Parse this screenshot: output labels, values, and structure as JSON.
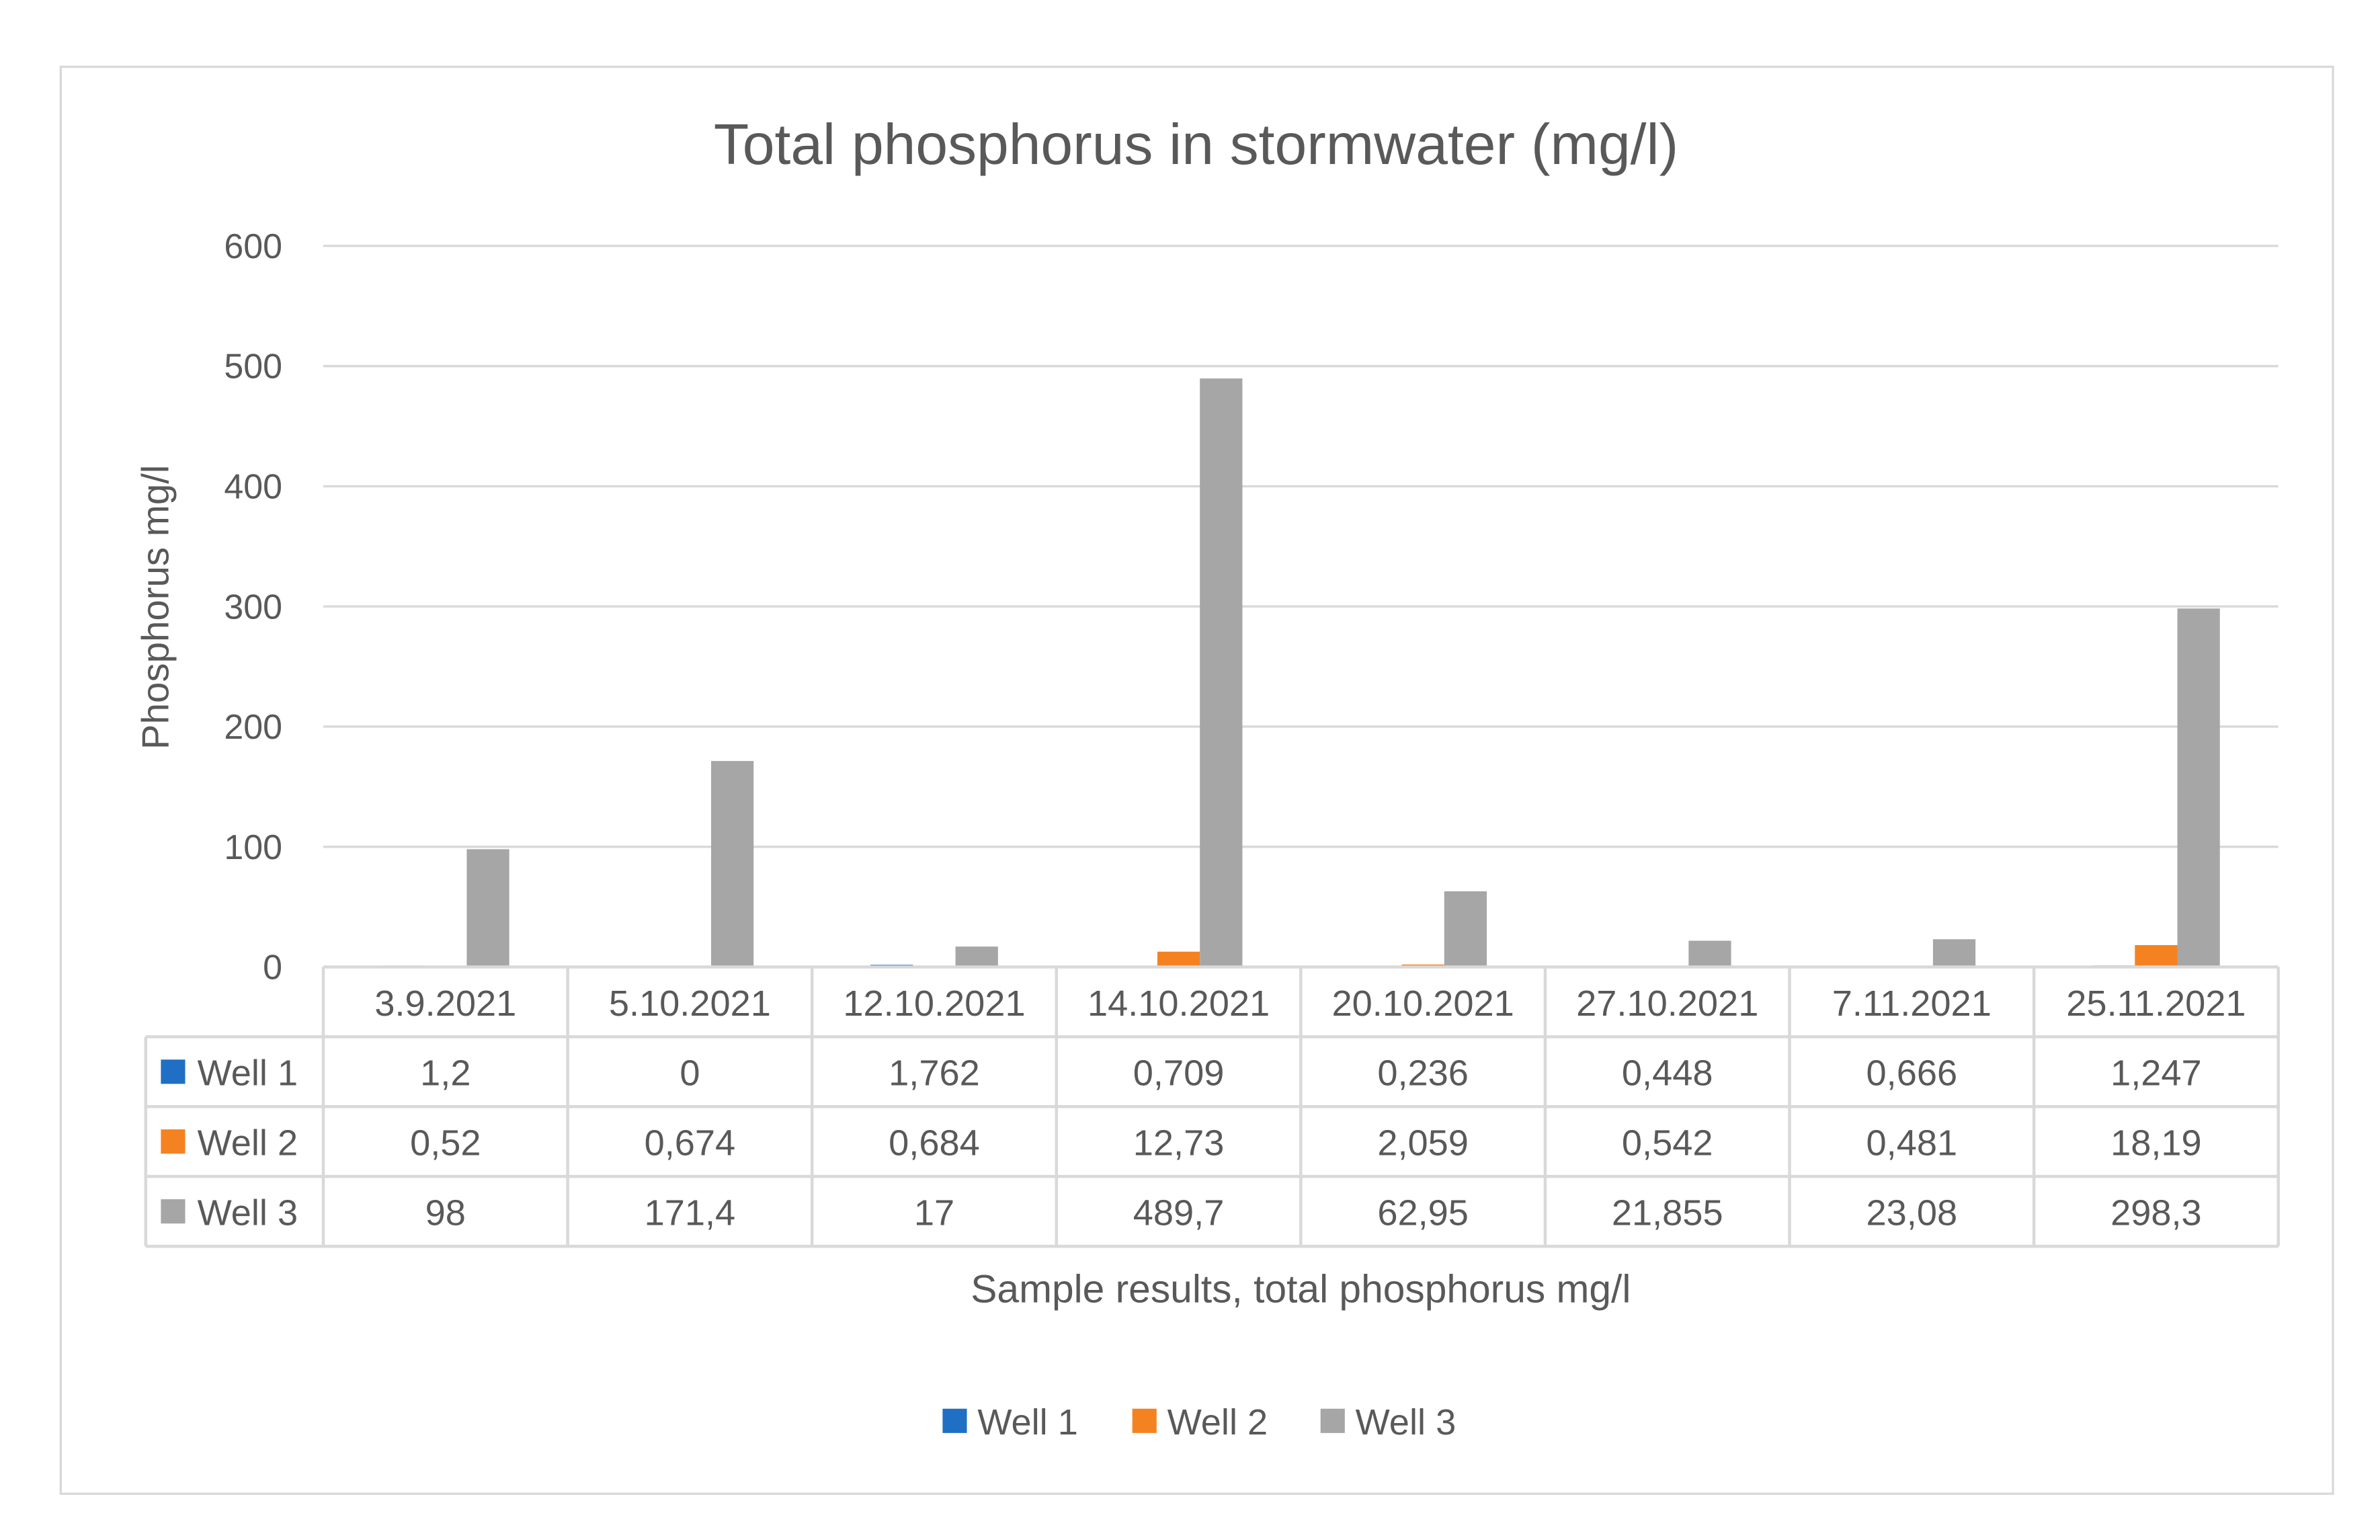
{
  "chart_data": {
    "type": "bar",
    "title": "Total  phosphorus in stormwater (mg/l)",
    "xlabel": "Sample results, total phosphorus mg/l",
    "ylabel": "Phosphorus mg/l",
    "ylim": [
      0,
      600
    ],
    "yticks": [
      0,
      100,
      200,
      300,
      400,
      500,
      600
    ],
    "grid": true,
    "legend_position": "bottom",
    "data_table": true,
    "categories": [
      "3.9.2021",
      "5.10.2021",
      "12.10.2021",
      "14.10.2021",
      "20.10.2021",
      "27.10.2021",
      "7.11.2021",
      "25.11.2021"
    ],
    "series": [
      {
        "name": "Well 1",
        "color": "#1f6fc4",
        "values": [
          1.2,
          0,
          1.762,
          0.709,
          0.236,
          0.448,
          0.666,
          1.247
        ],
        "labels": [
          "1,2",
          "0",
          "1,762",
          "0,709",
          "0,236",
          "0,448",
          "0,666",
          "1,247"
        ]
      },
      {
        "name": "Well 2",
        "color": "#f58220",
        "values": [
          0.52,
          0.674,
          0.684,
          12.73,
          2.059,
          0.542,
          0.481,
          18.19
        ],
        "labels": [
          "0,52",
          "0,674",
          "0,684",
          "12,73",
          "2,059",
          "0,542",
          "0,481",
          "18,19"
        ]
      },
      {
        "name": "Well 3",
        "color": "#a6a6a6",
        "values": [
          98,
          171.4,
          17,
          489.7,
          62.95,
          21.855,
          23.08,
          298.3
        ],
        "labels": [
          "98",
          "171,4",
          "17",
          "489,7",
          "62,95",
          "21,855",
          "23,08",
          "298,3"
        ]
      }
    ]
  }
}
